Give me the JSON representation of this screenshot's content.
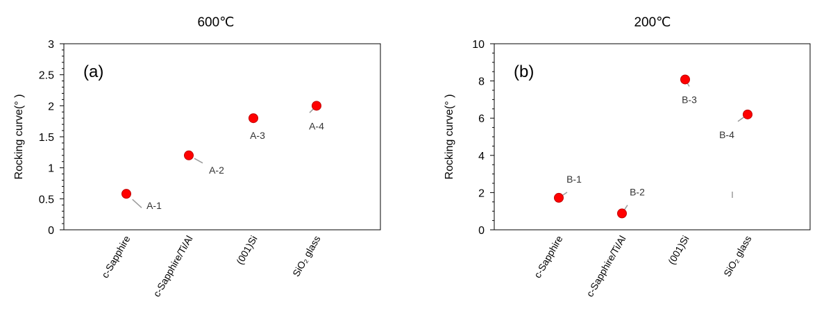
{
  "chart_data": [
    {
      "type": "scatter",
      "title": "600℃",
      "panel_label": "(a)",
      "ylabel": "Rocking curve(° )",
      "xlabel": "",
      "categories": [
        "c-Sapphire",
        "c-Sapphire/Ti/Al",
        "(001)Si",
        "SiO₂ glass"
      ],
      "yticks": [
        "0",
        "0.5",
        "1",
        "1.5",
        "2",
        "2.5",
        "3"
      ],
      "ylim": [
        0,
        3
      ],
      "grid": false,
      "legend": "none",
      "marker_color": "#ff0000",
      "series": [
        {
          "values": [
            0.58,
            1.2,
            1.8,
            2.0
          ],
          "labels": [
            "A-1",
            "A-2",
            "A-3",
            "A-4"
          ]
        }
      ]
    },
    {
      "type": "scatter",
      "title": "200℃",
      "panel_label": "(b)",
      "ylabel": "Rocking curve(° )",
      "xlabel": "",
      "categories": [
        "c-Sapphire",
        "c-Sapphire/Ti/Al",
        "(001)Si",
        "SiO₂ glass"
      ],
      "yticks": [
        "0",
        "2",
        "4",
        "6",
        "8",
        "10"
      ],
      "ylim": [
        0,
        10
      ],
      "grid": false,
      "legend": "none",
      "marker_color": "#ff0000",
      "series": [
        {
          "values": [
            1.72,
            0.88,
            8.08,
            6.2
          ],
          "labels": [
            "B-1",
            "B-2",
            "B-3",
            "B-4"
          ]
        }
      ]
    }
  ]
}
